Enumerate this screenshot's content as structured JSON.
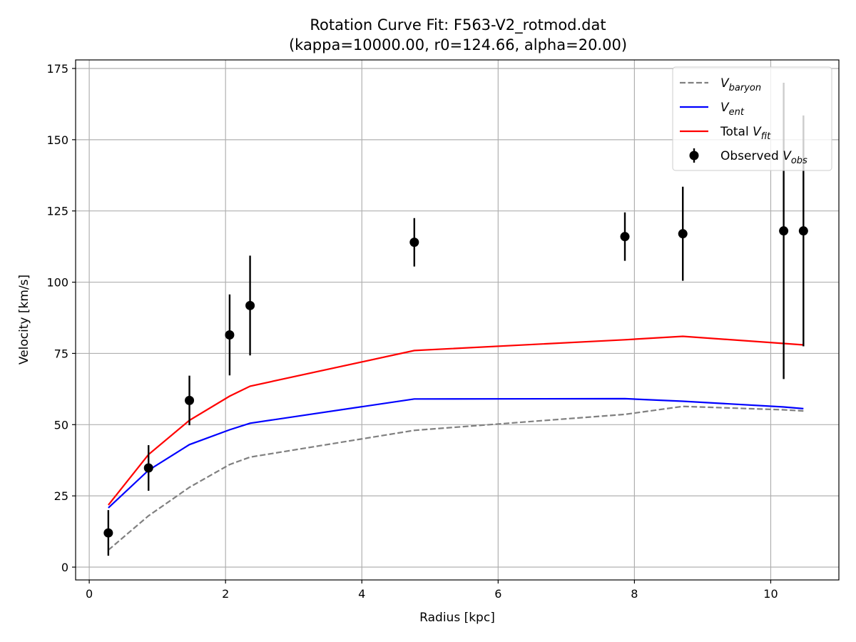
{
  "chart_data": {
    "type": "line",
    "title": "Rotation Curve Fit: F563-V2_rotmod.dat",
    "subtitle": "(kappa=10000.00, r0=124.66, alpha=20.00)",
    "xlabel": "Radius [kpc]",
    "ylabel": "Velocity [km/s]",
    "xlim": [
      -0.2,
      11.0
    ],
    "ylim": [
      -4.5,
      178.0
    ],
    "xticks": [
      0,
      2,
      4,
      6,
      8,
      10
    ],
    "yticks": [
      0,
      25,
      50,
      75,
      100,
      125,
      150,
      175
    ],
    "grid": true,
    "legend_position": "top-right",
    "x": [
      0.28,
      0.87,
      1.47,
      2.06,
      2.36,
      4.77,
      7.86,
      8.71,
      10.19,
      10.48
    ],
    "series": [
      {
        "name": "V",
        "subscript": "baryon",
        "kind": "line",
        "dash": "dashed",
        "color": "#808080",
        "values": [
          6.0,
          18.0,
          28.0,
          36.0,
          38.6,
          48.0,
          53.6,
          56.4,
          55.2,
          54.8
        ]
      },
      {
        "name": "V",
        "subscript": "ent",
        "kind": "line",
        "dash": "solid",
        "color": "#0000ff",
        "values": [
          20.8,
          34.0,
          43.0,
          48.2,
          50.5,
          59.0,
          59.1,
          58.2,
          56.2,
          55.6
        ]
      },
      {
        "name": "Total V",
        "subscript": "fit",
        "kind": "line",
        "dash": "solid",
        "color": "#ff0000",
        "values": [
          21.8,
          39.5,
          51.5,
          60.0,
          63.5,
          76.0,
          79.8,
          81.0,
          78.5,
          78.0
        ]
      },
      {
        "name": "Observed V",
        "subscript": "obs",
        "kind": "errorbar",
        "color": "#000000",
        "values": [
          12.0,
          34.8,
          58.5,
          81.5,
          91.8,
          114.0,
          116.0,
          117.0,
          118.0,
          118.0
        ],
        "errors": [
          8.0,
          8.0,
          8.7,
          14.2,
          17.5,
          8.5,
          8.5,
          16.5,
          52.0,
          40.5
        ]
      }
    ]
  }
}
